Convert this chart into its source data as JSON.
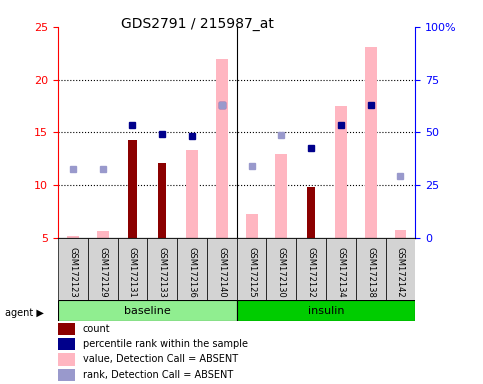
{
  "title": "GDS2791 / 215987_at",
  "samples": [
    "GSM172123",
    "GSM172129",
    "GSM172131",
    "GSM172133",
    "GSM172136",
    "GSM172140",
    "GSM172125",
    "GSM172130",
    "GSM172132",
    "GSM172134",
    "GSM172138",
    "GSM172142"
  ],
  "groups": [
    {
      "label": "baseline",
      "color": "#90EE90",
      "start": 0,
      "end": 5
    },
    {
      "label": "insulin",
      "color": "#00CC00",
      "start": 6,
      "end": 11
    }
  ],
  "ylim_left": [
    5,
    25
  ],
  "ylim_right": [
    0,
    100
  ],
  "yticks_left": [
    5,
    10,
    15,
    20,
    25
  ],
  "yticks_right": [
    0,
    25,
    50,
    75,
    100
  ],
  "yticklabels_right": [
    "0",
    "25",
    "50",
    "75",
    "100%"
  ],
  "pink_bars": [
    5.2,
    5.7,
    null,
    null,
    13.3,
    22.0,
    7.3,
    13.0,
    null,
    17.5,
    23.1,
    5.8
  ],
  "dark_red_bars": [
    null,
    null,
    14.3,
    12.1,
    null,
    null,
    null,
    null,
    9.8,
    null,
    null,
    null
  ],
  "blue_squares": [
    null,
    null,
    15.7,
    14.9,
    14.7,
    17.6,
    null,
    null,
    13.5,
    15.7,
    17.6,
    null
  ],
  "lavender_squares": [
    11.5,
    11.5,
    null,
    null,
    null,
    17.6,
    11.8,
    14.8,
    null,
    null,
    null,
    10.9
  ],
  "pink_bar_color": "#FFB6C1",
  "dark_red_color": "#8B0000",
  "blue_square_color": "#00008B",
  "lavender_color": "#9999CC",
  "left_axis_color": "red",
  "right_axis_color": "blue",
  "legend_items": [
    {
      "label": "count",
      "color": "#8B0000",
      "marker": "s"
    },
    {
      "label": "percentile rank within the sample",
      "color": "#00008B",
      "marker": "s"
    },
    {
      "label": "value, Detection Call = ABSENT",
      "color": "#FFB6C1",
      "marker": "s"
    },
    {
      "label": "rank, Detection Call = ABSENT",
      "color": "#9999CC",
      "marker": "s"
    }
  ]
}
